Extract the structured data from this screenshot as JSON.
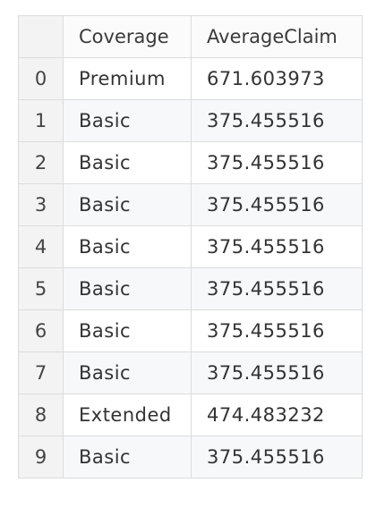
{
  "table": {
    "columns": [
      "",
      "Coverage",
      "AverageClaim"
    ],
    "rows": [
      {
        "index": "0",
        "coverage": "Premium",
        "average_claim": "671.603973"
      },
      {
        "index": "1",
        "coverage": "Basic",
        "average_claim": "375.455516"
      },
      {
        "index": "2",
        "coverage": "Basic",
        "average_claim": "375.455516"
      },
      {
        "index": "3",
        "coverage": "Basic",
        "average_claim": "375.455516"
      },
      {
        "index": "4",
        "coverage": "Basic",
        "average_claim": "375.455516"
      },
      {
        "index": "5",
        "coverage": "Basic",
        "average_claim": "375.455516"
      },
      {
        "index": "6",
        "coverage": "Basic",
        "average_claim": "375.455516"
      },
      {
        "index": "7",
        "coverage": "Basic",
        "average_claim": "375.455516"
      },
      {
        "index": "8",
        "coverage": "Extended",
        "average_claim": "474.483232"
      },
      {
        "index": "9",
        "coverage": "Basic",
        "average_claim": "375.455516"
      }
    ]
  }
}
